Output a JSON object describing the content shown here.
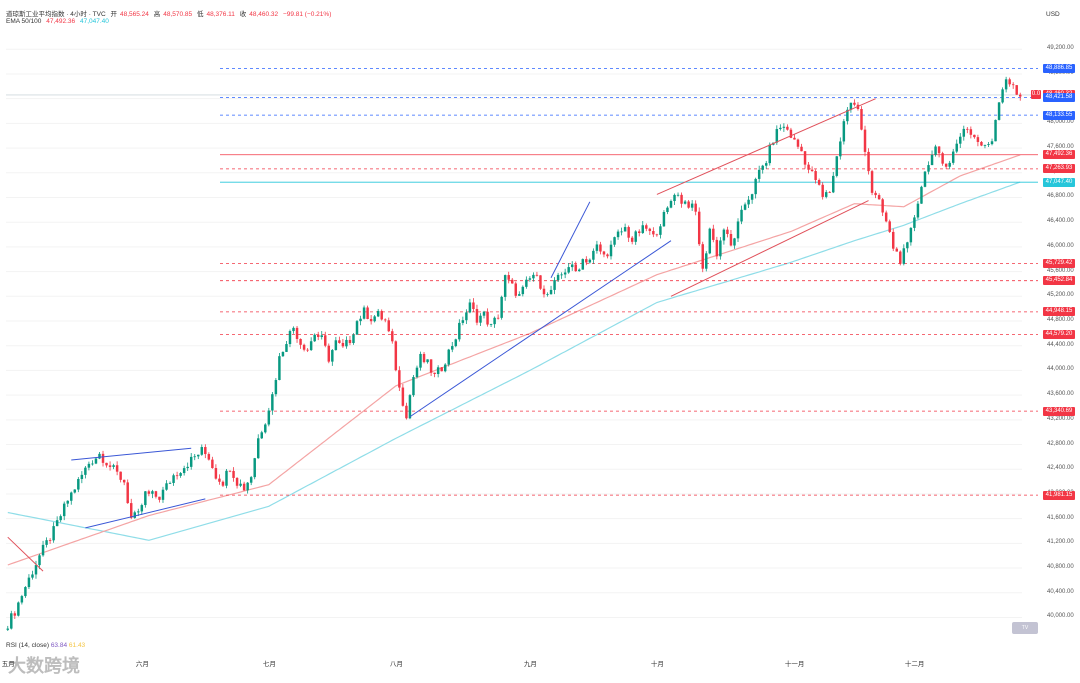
{
  "header": {
    "title": "道琼斯工业平均指数 · 4小时 · TVC",
    "open_label": "开",
    "open": "48,565.24",
    "high_label": "高",
    "high": "48,570.85",
    "low_label": "低",
    "low": "48,376.11",
    "close_label": "收",
    "close": "48,460.32",
    "change": "−99.81 (−0.21%)",
    "ema_label": "EMA 50/100",
    "ema50": "47,492.36",
    "ema100": "47,047.40"
  },
  "currency": "USD",
  "rsi": {
    "label": "RSI (14, close)",
    "value1": "63.84",
    "value2": "61.43"
  },
  "watermark": "大数跨境",
  "colors": {
    "up": "#089981",
    "down": "#f23645",
    "ema50": "#f4a4a4",
    "ema100": "#8fdde8",
    "trend_blue": "#3a57d6",
    "trend_red": "#e0505a"
  },
  "chart_data": {
    "type": "candlestick",
    "title": "道琼斯工业平均指数",
    "xlabel": "",
    "ylabel": "",
    "ylim": [
      39700,
      49350
    ],
    "y_ticks": [
      40000,
      40400,
      40800,
      41200,
      41600,
      42000,
      42400,
      42800,
      43200,
      43600,
      44000,
      44400,
      44800,
      45200,
      45600,
      46000,
      46400,
      46800,
      47200,
      47600,
      48000,
      48400,
      48800,
      49200
    ],
    "y_tick_labels": [
      "40,000.00",
      "40,400.00",
      "40,800.00",
      "41,200.00",
      "41,600.00",
      "42,000.00",
      "42,400.00",
      "42,800.00",
      "43,200.00",
      "43,600.00",
      "44,000.00",
      "44,400.00",
      "44,800.00",
      "45,200.00",
      "45,600.00",
      "46,000.00",
      "46,400.00",
      "46,800.00",
      "47,200.00",
      "47,600.00",
      "48,000.00",
      "48,400.00",
      "48,800.00",
      "49,200.00"
    ],
    "months": [
      {
        "label": "五月",
        "bar": 0
      },
      {
        "label": "六月",
        "bar": 38
      },
      {
        "label": "七月",
        "bar": 74
      },
      {
        "label": "八月",
        "bar": 110
      },
      {
        "label": "九月",
        "bar": 148
      },
      {
        "label": "十月",
        "bar": 184
      },
      {
        "label": "十一月",
        "bar": 222
      },
      {
        "label": "十二月",
        "bar": 256
      }
    ],
    "anchors": [
      [
        0,
        39800
      ],
      [
        3,
        40100
      ],
      [
        6,
        40500
      ],
      [
        10,
        41000
      ],
      [
        14,
        41400
      ],
      [
        18,
        41900
      ],
      [
        22,
        42300
      ],
      [
        24,
        42500
      ],
      [
        27,
        42650
      ],
      [
        30,
        42450
      ],
      [
        34,
        42200
      ],
      [
        36,
        41600
      ],
      [
        38,
        41650
      ],
      [
        40,
        42000
      ],
      [
        44,
        41950
      ],
      [
        48,
        42300
      ],
      [
        52,
        42500
      ],
      [
        56,
        42700
      ],
      [
        58,
        42600
      ],
      [
        60,
        42300
      ],
      [
        62,
        42200
      ],
      [
        64,
        42450
      ],
      [
        66,
        42200
      ],
      [
        68,
        42100
      ],
      [
        70,
        42300
      ],
      [
        72,
        42900
      ],
      [
        74,
        43200
      ],
      [
        76,
        43600
      ],
      [
        78,
        44200
      ],
      [
        80,
        44500
      ],
      [
        82,
        44700
      ],
      [
        84,
        44450
      ],
      [
        86,
        44350
      ],
      [
        88,
        44600
      ],
      [
        90,
        44500
      ],
      [
        92,
        44200
      ],
      [
        94,
        44450
      ],
      [
        96,
        44350
      ],
      [
        98,
        44500
      ],
      [
        100,
        44800
      ],
      [
        102,
        44950
      ],
      [
        104,
        44850
      ],
      [
        106,
        44900
      ],
      [
        108,
        44800
      ],
      [
        110,
        44400
      ],
      [
        112,
        43700
      ],
      [
        114,
        43300
      ],
      [
        116,
        43900
      ],
      [
        118,
        44200
      ],
      [
        120,
        44100
      ],
      [
        122,
        43900
      ],
      [
        124,
        44050
      ],
      [
        126,
        44300
      ],
      [
        128,
        44550
      ],
      [
        130,
        44850
      ],
      [
        132,
        45050
      ],
      [
        134,
        44850
      ],
      [
        136,
        44900
      ],
      [
        138,
        44700
      ],
      [
        140,
        44900
      ],
      [
        142,
        45500
      ],
      [
        144,
        45350
      ],
      [
        146,
        45200
      ],
      [
        148,
        45400
      ],
      [
        150,
        45550
      ],
      [
        152,
        45400
      ],
      [
        154,
        45200
      ],
      [
        156,
        45400
      ],
      [
        158,
        45550
      ],
      [
        160,
        45700
      ],
      [
        162,
        45600
      ],
      [
        164,
        45800
      ],
      [
        166,
        45800
      ],
      [
        168,
        46000
      ],
      [
        170,
        45850
      ],
      [
        172,
        46000
      ],
      [
        174,
        46200
      ],
      [
        176,
        46300
      ],
      [
        178,
        46100
      ],
      [
        180,
        46250
      ],
      [
        182,
        46300
      ],
      [
        184,
        46150
      ],
      [
        186,
        46400
      ],
      [
        188,
        46600
      ],
      [
        190,
        46900
      ],
      [
        192,
        46750
      ],
      [
        194,
        46700
      ],
      [
        196,
        46550
      ],
      [
        198,
        45600
      ],
      [
        200,
        46300
      ],
      [
        202,
        45900
      ],
      [
        204,
        46300
      ],
      [
        206,
        46000
      ],
      [
        208,
        46350
      ],
      [
        210,
        46700
      ],
      [
        212,
        46900
      ],
      [
        214,
        47200
      ],
      [
        216,
        47400
      ],
      [
        218,
        47750
      ],
      [
        220,
        47950
      ],
      [
        222,
        47900
      ],
      [
        224,
        47700
      ],
      [
        226,
        47550
      ],
      [
        228,
        47250
      ],
      [
        230,
        47100
      ],
      [
        232,
        46800
      ],
      [
        234,
        46900
      ],
      [
        236,
        47450
      ],
      [
        238,
        48050
      ],
      [
        240,
        48350
      ],
      [
        242,
        48200
      ],
      [
        244,
        47600
      ],
      [
        246,
        46900
      ],
      [
        248,
        46700
      ],
      [
        250,
        46400
      ],
      [
        252,
        46000
      ],
      [
        254,
        45800
      ],
      [
        256,
        46000
      ],
      [
        258,
        46500
      ],
      [
        260,
        47000
      ],
      [
        262,
        47400
      ],
      [
        264,
        47550
      ],
      [
        266,
        47350
      ],
      [
        268,
        47400
      ],
      [
        270,
        47650
      ],
      [
        272,
        47950
      ],
      [
        274,
        47850
      ],
      [
        276,
        47700
      ],
      [
        278,
        47600
      ],
      [
        280,
        47750
      ],
      [
        282,
        48400
      ],
      [
        284,
        48750
      ],
      [
        286,
        48560
      ],
      [
        287,
        48460
      ]
    ],
    "ema50": [
      [
        0,
        40850
      ],
      [
        40,
        41650
      ],
      [
        74,
        42150
      ],
      [
        110,
        43750
      ],
      [
        148,
        44600
      ],
      [
        184,
        45550
      ],
      [
        222,
        46250
      ],
      [
        240,
        46700
      ],
      [
        254,
        46650
      ],
      [
        270,
        47150
      ],
      [
        287,
        47490
      ]
    ],
    "ema100": [
      [
        0,
        41700
      ],
      [
        40,
        41250
      ],
      [
        74,
        41800
      ],
      [
        110,
        42900
      ],
      [
        148,
        44000
      ],
      [
        184,
        45100
      ],
      [
        222,
        45750
      ],
      [
        240,
        46100
      ],
      [
        254,
        46350
      ],
      [
        270,
        46700
      ],
      [
        287,
        47050
      ]
    ],
    "trendlines": [
      {
        "color": "blue",
        "from": [
          18,
          42550
        ],
        "to": [
          52,
          42740
        ]
      },
      {
        "color": "blue",
        "from": [
          22,
          41450
        ],
        "to": [
          56,
          41920
        ]
      },
      {
        "color": "blue",
        "from": [
          114,
          43250
        ],
        "to": [
          188,
          46100
        ]
      },
      {
        "color": "blue",
        "from": [
          154,
          45500
        ],
        "to": [
          165,
          46730
        ]
      },
      {
        "color": "red",
        "from": [
          0,
          41300
        ],
        "to": [
          10,
          40750
        ]
      },
      {
        "color": "red",
        "from": [
          184,
          46850
        ],
        "to": [
          246,
          48400
        ]
      },
      {
        "color": "red",
        "from": [
          188,
          45200
        ],
        "to": [
          244,
          46750
        ]
      }
    ],
    "horizontal_levels": [
      {
        "value": 48886.85,
        "label": "48,886.85",
        "color": "#2962ff",
        "dashed": true
      },
      {
        "value": 48460.32,
        "label": "48,460.32",
        "color": "#f23645",
        "dashed": false,
        "current": true,
        "tag": "0.0"
      },
      {
        "value": 48421.58,
        "label": "48,421.58",
        "color": "#2962ff",
        "dashed": true
      },
      {
        "value": 48133.55,
        "label": "48,133.55",
        "color": "#2962ff",
        "dashed": true
      },
      {
        "value": 47492.36,
        "label": "47,492.36",
        "color": "#f23645",
        "dashed": false
      },
      {
        "value": 47263.93,
        "label": "47,263.93",
        "color": "#f23645",
        "dashed": true
      },
      {
        "value": 47047.4,
        "label": "47,047.40",
        "color": "#26c6da",
        "dashed": false
      },
      {
        "value": 45729.42,
        "label": "45,729.42",
        "color": "#f23645",
        "dashed": true
      },
      {
        "value": 45452.84,
        "label": "45,452.84",
        "color": "#f23645",
        "dashed": true
      },
      {
        "value": 44948.15,
        "label": "44,948.15",
        "color": "#f23645",
        "dashed": true
      },
      {
        "value": 44579.2,
        "label": "44,579.20",
        "color": "#f23645",
        "dashed": true
      },
      {
        "value": 43340.69,
        "label": "43,340.69",
        "color": "#f23645",
        "dashed": true
      },
      {
        "value": 41981.15,
        "label": "41,981.15",
        "color": "#f23645",
        "dashed": true
      }
    ]
  }
}
